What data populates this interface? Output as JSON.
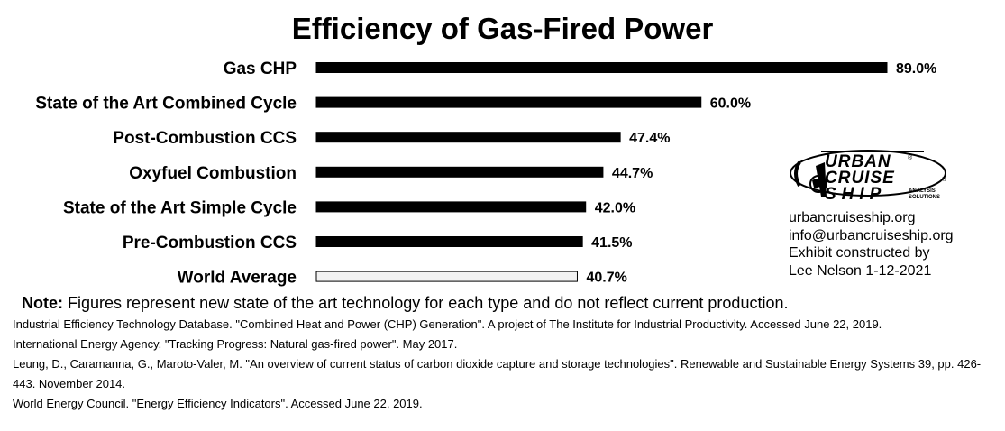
{
  "chart_data": {
    "type": "bar",
    "orientation": "horizontal",
    "title": "Efficiency of Gas-Fired Power",
    "categories": [
      "Gas CHP",
      "State of the Art Combined Cycle",
      "Post-Combustion CCS",
      "Oxyfuel Combustion",
      "State of the Art Simple Cycle",
      "Pre-Combustion CCS",
      "World Average"
    ],
    "values": [
      89.0,
      60.0,
      47.4,
      44.7,
      42.0,
      41.5,
      40.7
    ],
    "value_labels": [
      "89.0%",
      "60.0%",
      "47.4%",
      "44.7%",
      "42.0%",
      "41.5%",
      "40.7%"
    ],
    "bar_fills": [
      "#000000",
      "#000000",
      "#000000",
      "#000000",
      "#000000",
      "#000000",
      "#f2f2f2"
    ],
    "xlim": [
      0,
      89.0
    ],
    "xlabel": "",
    "ylabel": "",
    "grid": false,
    "axes_visible": false
  },
  "logo": {
    "line1": "URBAN",
    "line2": "CRUISE",
    "line3": "SHIP",
    "sub1": "ANALYSIS",
    "sub2": "SOLUTIONS",
    "reg": "®"
  },
  "contact": {
    "website": "urbancruiseship.org",
    "email": "info@urbancruiseship.org",
    "credit1": "Exhibit constructed by",
    "credit2": "Lee Nelson 1-12-2021"
  },
  "note": {
    "label": "Note:",
    "text": "Figures represent new state of the art technology for each type and do not reflect current production."
  },
  "sources": [
    "Industrial Efficiency Technology Database. \"Combined Heat and Power (CHP) Generation\". A project of The Institute for Industrial Productivity. Accessed June 22, 2019.",
    "International Energy Agency. \"Tracking Progress: Natural gas-fired power\". May 2017.",
    "Leung, D., Caramanna, G., Maroto-Valer, M. \"An overview of current status of carbon dioxide capture and storage technologies\". Renewable and Sustainable Energy Systems 39, pp. 426-443. November 2014.",
    "World Energy Council. \"Energy Efficiency Indicators\". Accessed June 22, 2019."
  ]
}
